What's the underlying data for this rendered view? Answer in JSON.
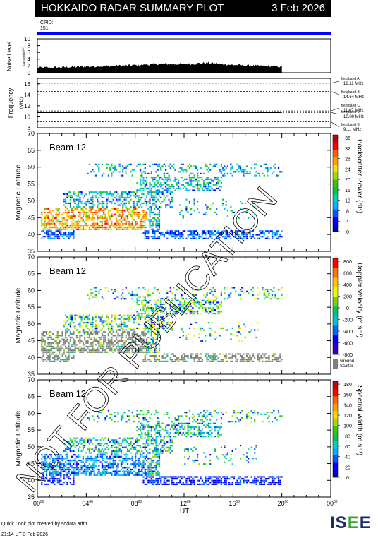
{
  "header": {
    "title": "HOKKAIDO RADAR SUMMARY PLOT",
    "date": "3 Feb 2026"
  },
  "cpid": {
    "label": "CPID:",
    "value": "151"
  },
  "noise_panel": {
    "ylabel": "Noise Level",
    "sublabel": "log₁₀(noise/¹⁰)",
    "yticks": [
      "0",
      "2",
      "4",
      "6",
      "8",
      "10"
    ]
  },
  "freq_panel": {
    "ylabel": "Frequency",
    "unit": "(MHz)",
    "yticks": [
      "8",
      "10",
      "12",
      "14",
      "16"
    ],
    "bands": [
      {
        "name": "freq band A",
        "value": "16.11 MHz"
      },
      {
        "name": "freq band B",
        "value": "14.64 MHz"
      },
      {
        "name": "freq band C",
        "value": "11.07 MHz"
      },
      {
        "name": "freq band D",
        "value": "10.80 MHz"
      },
      {
        "name": "freq band E",
        "value": "9.11 MHz"
      }
    ]
  },
  "panels": [
    {
      "beam": "Beam 12",
      "ylabel": "Magnetic Latitude",
      "cbar_label": "Backscatter Power (dB)",
      "cbar_ticks": [
        "0",
        "4",
        "8",
        "12",
        "16",
        "20",
        "24",
        "28",
        "32",
        "36"
      ],
      "extra": ""
    },
    {
      "beam": "Beam 12",
      "ylabel": "Magnetic Latitude",
      "cbar_label": "Doppler Velocity (m s⁻¹)",
      "cbar_ticks": [
        "-800",
        "-600",
        "-400",
        "-200",
        "0",
        "200",
        "400",
        "600",
        "800"
      ],
      "extra": "Ground Scatter"
    },
    {
      "beam": "Beam 12",
      "ylabel": "Magnetic Latitude",
      "cbar_label": "Spectral Width (m s⁻¹)",
      "cbar_ticks": [
        "0",
        "20",
        "40",
        "60",
        "80",
        "100",
        "120",
        "140",
        "160",
        "180"
      ],
      "extra": ""
    }
  ],
  "lat_ticks": [
    "35",
    "40",
    "45",
    "50",
    "55",
    "60",
    "65",
    "70"
  ],
  "time_ticks": [
    "00",
    "04",
    "08",
    "12",
    "16",
    "20",
    "00"
  ],
  "xlabel": "UT",
  "watermark": "NOT FOR PUBLICATION",
  "footer": {
    "created": "Quick Look plot created by sddata.adm",
    "timestamp": "21:14 UT  3 Feb 2026"
  },
  "logo": {
    "text_a": "IS",
    "text_b": "E",
    "text_c": "E"
  },
  "colors": {
    "accent": "#0000ff",
    "ground_scatter": "#808080"
  },
  "chart_data": [
    {
      "type": "area",
      "title": "Noise Level",
      "xlabel": "UT",
      "ylim": [
        0,
        10
      ],
      "xlim_hours": [
        0,
        24
      ],
      "x": [
        0,
        2,
        4,
        6,
        8,
        10,
        12,
        14,
        16,
        18,
        20
      ],
      "series": [
        {
          "values": [
            1.5,
            1.6,
            1.8,
            2.0,
            2.2,
            2.6,
            2.5,
            2.9,
            2.3,
            2.0,
            1.8
          ]
        }
      ]
    },
    {
      "type": "scatter",
      "title": "Frequency",
      "ylim": [
        8,
        17
      ],
      "xlim_hours": [
        0,
        24
      ],
      "x": [
        0,
        20
      ],
      "series": [
        {
          "values": [
            10.8,
            10.8
          ]
        }
      ]
    },
    {
      "type": "heatmap",
      "title": "Backscatter Power (dB)",
      "ylim": [
        35,
        70
      ],
      "xlim_hours": [
        0,
        24
      ],
      "clim": [
        0,
        36
      ]
    },
    {
      "type": "heatmap",
      "title": "Doppler Velocity (m s⁻¹)",
      "ylim": [
        35,
        70
      ],
      "xlim_hours": [
        0,
        24
      ],
      "clim": [
        -800,
        800
      ]
    },
    {
      "type": "heatmap",
      "title": "Spectral Width (m s⁻¹)",
      "ylim": [
        35,
        70
      ],
      "xlim_hours": [
        0,
        24
      ],
      "clim": [
        0,
        180
      ]
    }
  ]
}
